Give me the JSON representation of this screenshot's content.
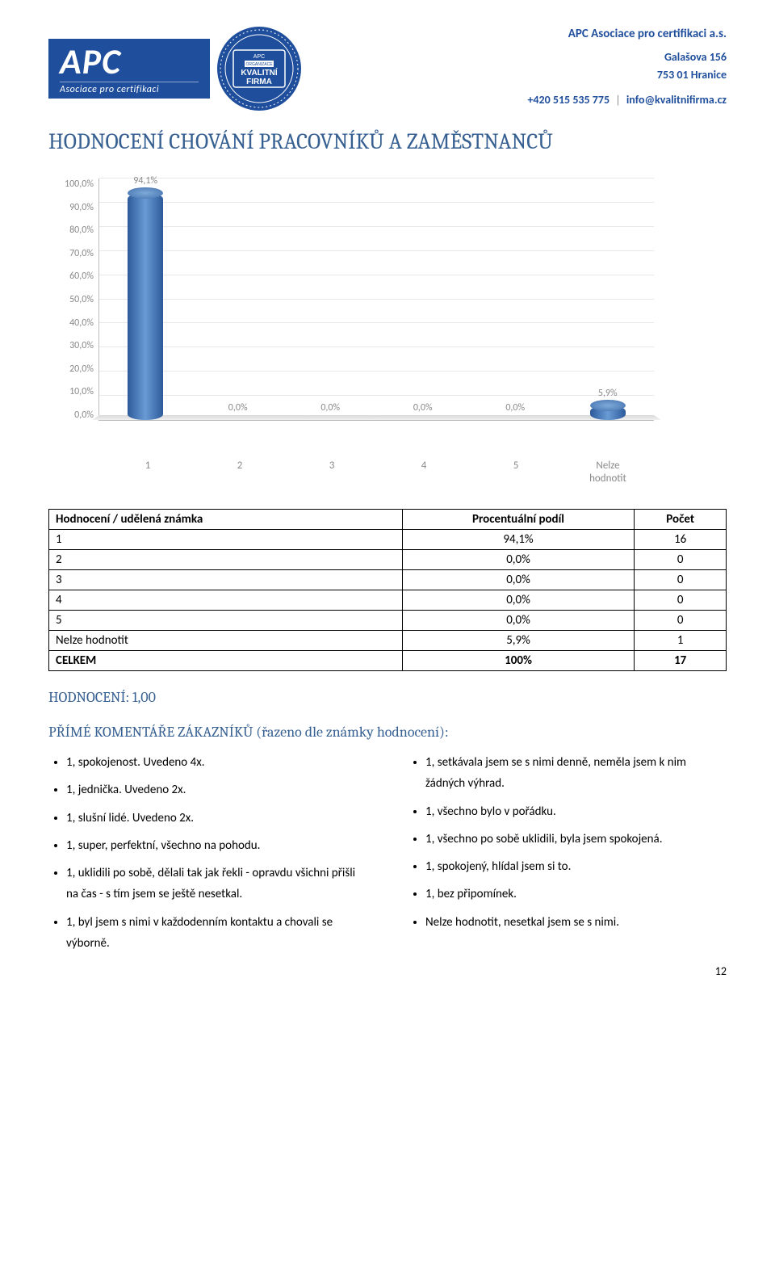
{
  "header": {
    "company": "APC Asociace pro certifikaci a.s.",
    "address_line1": "Galašova 156",
    "address_line2": "753 01 Hranice",
    "phone": "+420 515 535 775",
    "email": "info@kvalitnifirma.cz",
    "logo_sub": "Asociace pro certifikaci",
    "seal_line1": "APC",
    "seal_line2": "KVALITNÍ",
    "seal_line3": "FIRMA"
  },
  "title": "HODNOCENÍ CHOVÁNÍ PRACOVNÍKŮ A ZAMĚSTNANCŮ",
  "chart": {
    "type": "bar",
    "categories": [
      "1",
      "2",
      "3",
      "4",
      "5",
      "Nelze\nhodnotit"
    ],
    "values": [
      94.1,
      0.0,
      0.0,
      0.0,
      0.0,
      5.9
    ],
    "value_labels": [
      "94,1%",
      "0,0%",
      "0,0%",
      "0,0%",
      "0,0%",
      "5,9%"
    ],
    "ylim": [
      0,
      100
    ],
    "ytick_step": 10,
    "yticks": [
      "0,0%",
      "10,0%",
      "20,0%",
      "30,0%",
      "40,0%",
      "50,0%",
      "60,0%",
      "70,0%",
      "80,0%",
      "90,0%",
      "100,0%"
    ],
    "bar_color": "#4a7ab8",
    "grid_color": "#e8e8e8",
    "axis_text_color": "#888888",
    "background_color": "#ffffff",
    "label_fontsize": 12
  },
  "table": {
    "columns": [
      "Hodnocení / udělená známka",
      "Procentuální podíl",
      "Počet"
    ],
    "rows": [
      [
        "1",
        "94,1%",
        "16"
      ],
      [
        "2",
        "0,0%",
        "0"
      ],
      [
        "3",
        "0,0%",
        "0"
      ],
      [
        "4",
        "0,0%",
        "0"
      ],
      [
        "5",
        "0,0%",
        "0"
      ],
      [
        "Nelze hodnotit",
        "5,9%",
        "1"
      ],
      [
        "CELKEM",
        "100%",
        "17"
      ]
    ]
  },
  "rating_heading": "HODNOCENÍ: 1,00",
  "comments_heading": "PŘÍMÉ KOMENTÁŘE ZÁKAZNÍKŮ (řazeno dle známky hodnocení):",
  "comments_left": [
    "1, spokojenost. Uvedeno 4x.",
    "1, jednička. Uvedeno 2x.",
    "1, slušní lidé. Uvedeno 2x.",
    "1, super, perfektní, všechno na pohodu.",
    "1, uklidili po sobě, dělali tak jak řekli - opravdu všichni přišli na čas - s tím jsem se ještě nesetkal.",
    "1, byl jsem s nimi v každodenním kontaktu a chovali se výborně."
  ],
  "comments_right": [
    "1, setkávala jsem se s nimi denně, neměla jsem k nim žádných výhrad.",
    "1, všechno bylo v pořádku.",
    "1, všechno po sobě uklidili, byla jsem spokojená.",
    "1, spokojený, hlídal jsem si to.",
    "1, bez připomínek.",
    "Nelze hodnotit, nesetkal jsem se s nimi."
  ],
  "page_number": "12",
  "colors": {
    "brand_blue": "#1f4e9c",
    "heading_blue": "#376092"
  }
}
